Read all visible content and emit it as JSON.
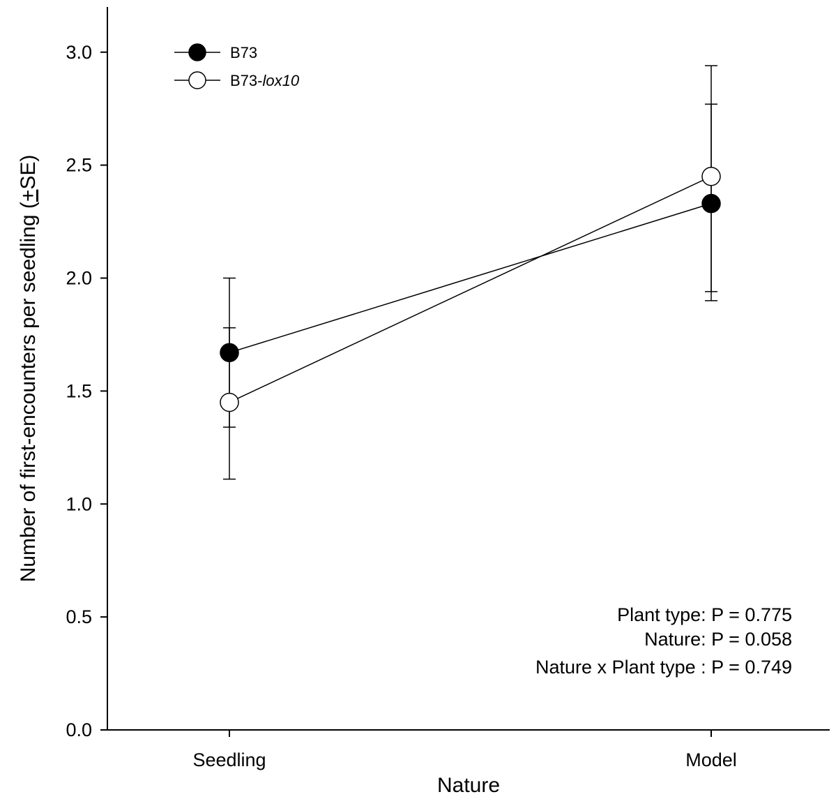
{
  "chart_data": {
    "type": "line",
    "categories": [
      "Seedling",
      "Model"
    ],
    "xlabel": "Nature",
    "ylabel": "Number of first-encounters per seedling (±SE)",
    "ylabel_parts": {
      "before": "Number of first-encounters per seedling (",
      "pm": "+",
      "after": "SE)"
    },
    "ylim": [
      0,
      3.2
    ],
    "yticks": [
      "0.0",
      "0.5",
      "1.0",
      "1.5",
      "2.0",
      "2.5",
      "3.0"
    ],
    "grid": false,
    "legend_position": "top-left",
    "series": [
      {
        "name": "B73",
        "name_main": "B73",
        "name_italic": "",
        "marker": "filled",
        "color": "#000000",
        "values": [
          1.67,
          2.33
        ],
        "se_upper": [
          1.78,
          2.77
        ],
        "se_lower": [
          1.34,
          1.94
        ]
      },
      {
        "name": "B73-lox10",
        "name_main": "B73-",
        "name_italic": "lox10",
        "marker": "open",
        "color": "#000000",
        "values": [
          1.45,
          2.45
        ],
        "se_upper": [
          2.0,
          2.94
        ],
        "se_lower": [
          1.11,
          1.9
        ]
      }
    ],
    "annotations": [
      "Plant type: P = 0.775",
      "Nature: P = 0.058",
      "Nature x Plant type : P = 0.749"
    ]
  }
}
